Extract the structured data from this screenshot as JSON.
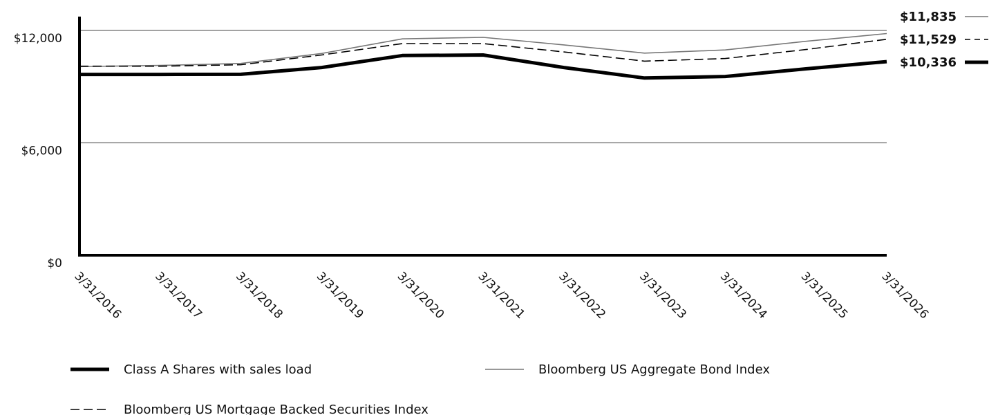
{
  "chart_data": {
    "type": "line",
    "title": "",
    "xlabel": "",
    "ylabel": "",
    "x": [
      "3/31/2016",
      "3/31/2017",
      "3/31/2018",
      "3/31/2019",
      "3/31/2020",
      "3/31/2021",
      "3/31/2022",
      "3/31/2023",
      "3/31/2024",
      "3/31/2025",
      "3/31/2026"
    ],
    "ylim": [
      0,
      12000
    ],
    "yticks": [
      0,
      6000,
      12000
    ],
    "ytick_labels": [
      "$0",
      "$6,000",
      "$12,000"
    ],
    "grid": "horizontal",
    "legend_position": "bottom",
    "series": [
      {
        "name": "Class A Shares with sales load",
        "style": "solid-thick",
        "color": "#000000",
        "end_label": "$10,336",
        "values": [
          9650,
          9650,
          9660,
          10020,
          10660,
          10690,
          10020,
          9460,
          9540,
          9950,
          10336
        ]
      },
      {
        "name": "Bloomberg US Aggregate Bond Index",
        "style": "solid-thin",
        "color": "#777777",
        "end_label": "$11,835",
        "values": [
          10070,
          10130,
          10240,
          10770,
          11550,
          11630,
          11230,
          10790,
          10960,
          11420,
          11835
        ]
      },
      {
        "name": "Bloomberg US Mortgage Backed Securities Index",
        "style": "dashed",
        "color": "#000000",
        "end_label": "$11,529",
        "values": [
          10090,
          10090,
          10170,
          10690,
          11300,
          11300,
          10850,
          10360,
          10500,
          10980,
          11529
        ]
      }
    ]
  }
}
